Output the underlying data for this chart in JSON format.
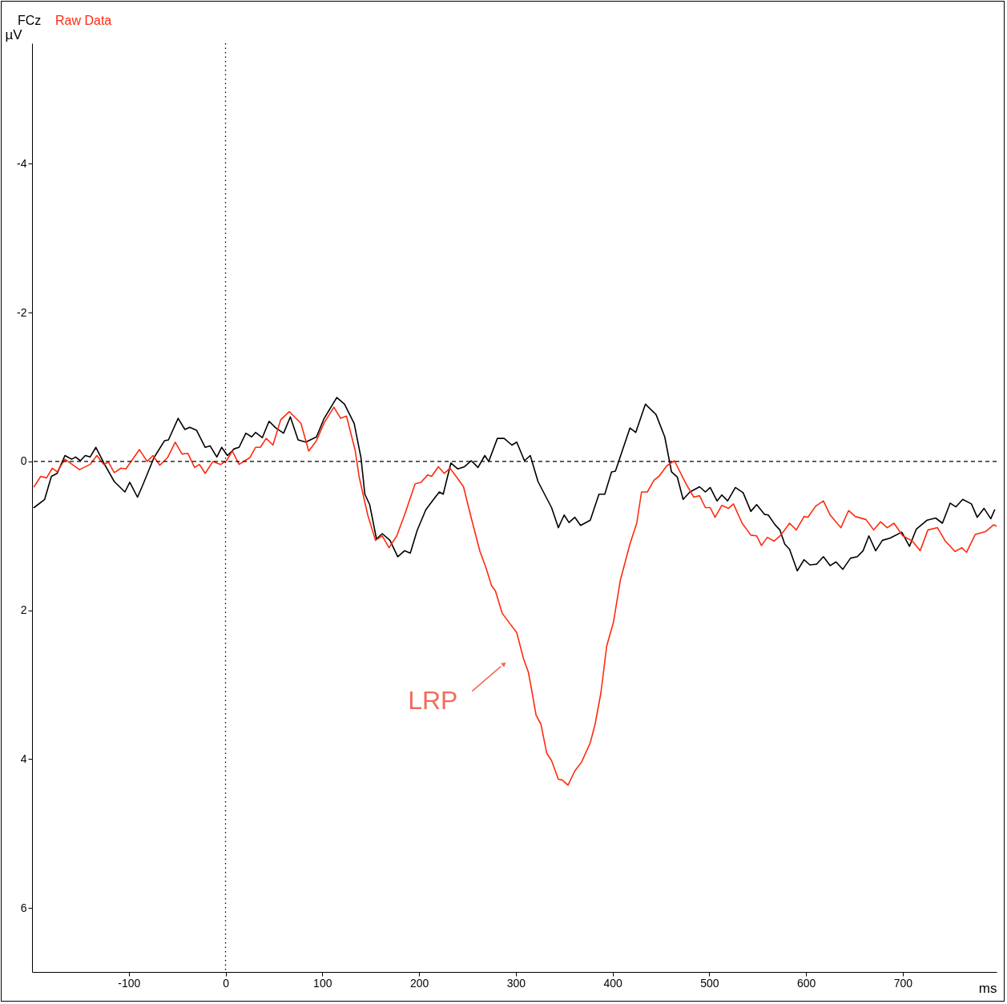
{
  "chart_data": {
    "type": "line",
    "xlabel": "ms",
    "ylabel": "µV",
    "xlim": [
      -200,
      797
    ],
    "ylim": [
      6.86,
      -5.62
    ],
    "xticks": [
      -100,
      0,
      100,
      200,
      300,
      400,
      500,
      600,
      700
    ],
    "yticks": [
      -4,
      -2,
      0,
      2,
      4,
      6
    ],
    "grid": false,
    "legend": "top left",
    "line_style": "solid",
    "marker": "none",
    "series": [
      {
        "name": "FCz",
        "color": "#000000",
        "x": [
          -198,
          -187,
          -180,
          -174,
          -166,
          -159,
          -155,
          -150,
          -145,
          -140,
          -134,
          -125,
          -115,
          -104,
          -99,
          -91,
          -85,
          -74,
          -63,
          -59,
          -49,
          -42,
          -37,
          -30,
          -21,
          -16,
          -9,
          -4,
          2,
          9,
          14,
          21,
          27,
          31,
          38,
          45,
          52,
          60,
          67,
          75,
          83,
          94,
          102,
          115,
          123,
          133,
          140,
          144,
          149,
          156,
          162,
          170,
          178,
          185,
          191,
          198,
          207,
          215,
          221,
          225,
          233,
          240,
          247,
          254,
          261,
          268,
          272,
          281,
          288,
          296,
          301,
          309,
          315,
          323,
          337,
          344,
          350,
          355,
          361,
          367,
          377,
          386,
          392,
          399,
          403,
          418,
          424,
          434,
          445,
          454,
          461,
          467,
          473,
          480,
          490,
          496,
          501,
          508,
          513,
          519,
          527,
          535,
          543,
          549,
          557,
          561,
          568,
          573,
          578,
          583,
          591,
          598,
          604,
          611,
          618,
          625,
          631,
          638,
          646,
          653,
          659,
          665,
          672,
          679,
          687,
          699,
          707,
          714,
          725,
          734,
          741,
          749,
          755,
          762,
          771,
          777,
          784,
          791,
          795
        ],
        "values": [
          0.62,
          0.51,
          0.2,
          0.16,
          -0.08,
          -0.03,
          -0.06,
          -0.01,
          -0.08,
          -0.06,
          -0.19,
          0.04,
          0.27,
          0.41,
          0.28,
          0.48,
          0.3,
          -0.05,
          -0.28,
          -0.29,
          -0.58,
          -0.43,
          -0.46,
          -0.42,
          -0.19,
          -0.21,
          -0.06,
          -0.19,
          -0.08,
          -0.17,
          -0.19,
          -0.38,
          -0.33,
          -0.39,
          -0.32,
          -0.54,
          -0.45,
          -0.38,
          -0.6,
          -0.29,
          -0.26,
          -0.33,
          -0.58,
          -0.86,
          -0.77,
          -0.51,
          -0.05,
          0.44,
          0.58,
          1.04,
          0.97,
          1.06,
          1.28,
          1.2,
          1.23,
          0.93,
          0.65,
          0.51,
          0.41,
          0.44,
          0.02,
          0.1,
          0.07,
          -0.01,
          0.08,
          -0.08,
          0.0,
          -0.31,
          -0.31,
          -0.22,
          -0.26,
          -0.01,
          -0.08,
          0.27,
          0.62,
          0.89,
          0.72,
          0.82,
          0.75,
          0.86,
          0.79,
          0.44,
          0.44,
          0.14,
          0.13,
          -0.45,
          -0.39,
          -0.77,
          -0.63,
          -0.33,
          0.14,
          0.21,
          0.51,
          0.41,
          0.34,
          0.41,
          0.35,
          0.53,
          0.45,
          0.53,
          0.35,
          0.42,
          0.67,
          0.58,
          0.71,
          0.72,
          0.85,
          0.92,
          1.11,
          1.18,
          1.47,
          1.32,
          1.39,
          1.38,
          1.28,
          1.4,
          1.35,
          1.45,
          1.3,
          1.28,
          1.2,
          1.0,
          1.2,
          1.06,
          1.03,
          0.95,
          1.14,
          0.91,
          0.79,
          0.76,
          0.83,
          0.56,
          0.61,
          0.51,
          0.57,
          0.75,
          0.63,
          0.77,
          0.65
        ]
      },
      {
        "name": "Raw Data",
        "color": "#ff2a10",
        "x": [
          -198,
          -191,
          -185,
          -179,
          -174,
          -166,
          -151,
          -140,
          -133,
          -126,
          -121,
          -115,
          -108,
          -103,
          -89,
          -81,
          -75,
          -68,
          -60,
          -52,
          -45,
          -39,
          -32,
          -27,
          -21,
          -13,
          -5,
          1,
          7,
          14,
          20,
          25,
          31,
          36,
          42,
          49,
          57,
          66,
          78,
          86,
          94,
          102,
          112,
          119,
          125,
          134,
          138,
          147,
          155,
          162,
          169,
          177,
          185,
          196,
          202,
          209,
          213,
          220,
          226,
          232,
          240,
          246,
          254,
          263,
          269,
          275,
          279,
          286,
          294,
          301,
          308,
          313,
          317,
          321,
          326,
          332,
          337,
          344,
          348,
          354,
          361,
          368,
          377,
          382,
          388,
          394,
          401,
          408,
          418,
          425,
          430,
          436,
          443,
          448,
          456,
          464,
          476,
          484,
          490,
          496,
          501,
          506,
          513,
          520,
          525,
          534,
          543,
          549,
          554,
          560,
          567,
          574,
          583,
          590,
          598,
          602,
          610,
          618,
          625,
          636,
          644,
          651,
          662,
          670,
          677,
          684,
          691,
          700,
          710,
          718,
          726,
          736,
          744,
          754,
          761,
          766,
          775,
          786,
          794,
          797
        ],
        "values": [
          0.34,
          0.2,
          0.22,
          0.09,
          0.14,
          -0.03,
          0.11,
          0.04,
          -0.08,
          0.04,
          0.01,
          0.15,
          0.09,
          0.1,
          -0.16,
          0.0,
          -0.08,
          0.05,
          -0.05,
          -0.26,
          -0.1,
          -0.11,
          0.08,
          0.04,
          0.16,
          0.0,
          0.04,
          -0.01,
          -0.14,
          0.04,
          -0.01,
          -0.05,
          -0.19,
          -0.19,
          -0.31,
          -0.22,
          -0.56,
          -0.67,
          -0.51,
          -0.14,
          -0.28,
          -0.52,
          -0.73,
          -0.58,
          -0.61,
          -0.15,
          0.2,
          0.72,
          1.06,
          1.0,
          1.16,
          1.0,
          0.72,
          0.3,
          0.28,
          0.18,
          0.2,
          0.07,
          0.16,
          0.09,
          0.23,
          0.34,
          0.76,
          1.21,
          1.42,
          1.67,
          1.74,
          2.04,
          2.18,
          2.3,
          2.65,
          2.83,
          3.11,
          3.41,
          3.53,
          3.92,
          4.02,
          4.27,
          4.28,
          4.35,
          4.16,
          4.04,
          3.78,
          3.53,
          3.11,
          2.48,
          2.16,
          1.6,
          1.11,
          0.83,
          0.41,
          0.41,
          0.25,
          0.2,
          0.06,
          -0.01,
          0.3,
          0.48,
          0.46,
          0.62,
          0.62,
          0.75,
          0.59,
          0.63,
          0.57,
          0.83,
          0.99,
          1.0,
          1.13,
          1.02,
          1.07,
          0.99,
          0.83,
          0.92,
          0.74,
          0.75,
          0.6,
          0.53,
          0.72,
          0.89,
          0.66,
          0.74,
          0.78,
          0.92,
          0.81,
          0.89,
          0.83,
          1.0,
          1.07,
          1.2,
          0.92,
          0.89,
          1.07,
          1.21,
          1.16,
          1.22,
          0.98,
          0.94,
          0.85,
          0.87
        ]
      }
    ],
    "ref_lines": [
      {
        "axis": "y",
        "value": 0,
        "color": "#000000",
        "line_style": "dashed"
      },
      {
        "axis": "x",
        "value": 0,
        "color": "#000000",
        "line_style": "dotted"
      }
    ],
    "annotations": [
      {
        "text": "LRP",
        "x": 288,
        "y": 2.72
      }
    ]
  }
}
